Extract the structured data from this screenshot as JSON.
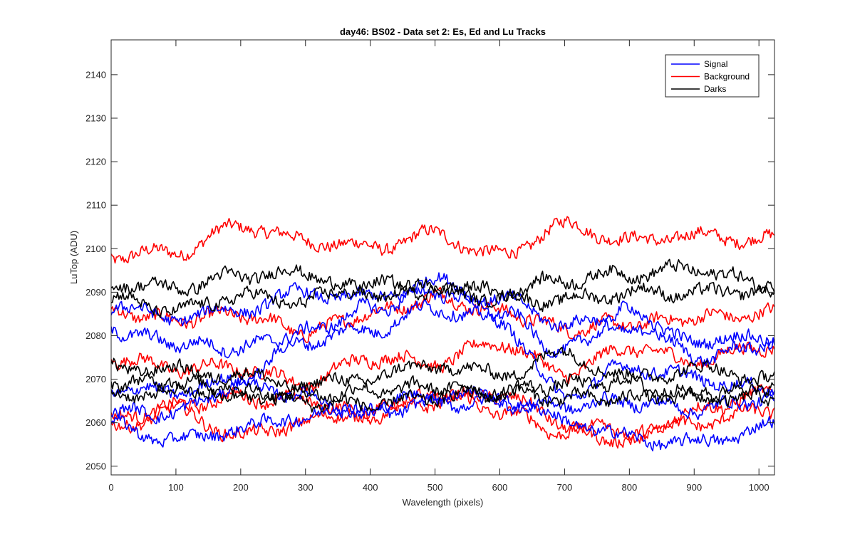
{
  "chart_data": {
    "type": "line",
    "title": "day46: BS02 - Data set 2: Es, Ed and Lu Tracks",
    "xlabel": "Wavelength (pixels)",
    "ylabel": "LuTop (ADU)",
    "xlim": [
      0,
      1024
    ],
    "ylim": [
      2048,
      2148
    ],
    "x_ticks": [
      0,
      100,
      200,
      300,
      400,
      500,
      600,
      700,
      800,
      900,
      1000
    ],
    "y_ticks": [
      2050,
      2060,
      2070,
      2080,
      2090,
      2100,
      2110,
      2120,
      2130,
      2140
    ],
    "grid": false,
    "legend_position": "top-right",
    "legend": [
      {
        "name": "Signal",
        "color": "#0000ff"
      },
      {
        "name": "Background",
        "color": "#ff0000"
      },
      {
        "name": "Darks",
        "color": "#000000"
      }
    ],
    "series": [
      {
        "group": "Signal",
        "color": "#0000ff",
        "x": [
          0,
          100,
          200,
          300,
          400,
          500,
          600,
          700,
          800,
          900,
          1024
        ],
        "y": [
          2087,
          2085,
          2086,
          2089,
          2088,
          2093,
          2089,
          2083,
          2081,
          2079,
          2080
        ]
      },
      {
        "group": "Signal",
        "color": "#0000ff",
        "x": [
          0,
          100,
          200,
          300,
          400,
          500,
          600,
          700,
          800,
          900,
          1024
        ],
        "y": [
          2082,
          2079,
          2077,
          2080,
          2086,
          2091,
          2086,
          2076,
          2085,
          2075,
          2079
        ]
      },
      {
        "group": "Signal",
        "color": "#0000ff",
        "x": [
          0,
          100,
          200,
          300,
          400,
          500,
          600,
          700,
          800,
          900,
          1024
        ],
        "y": [
          2068,
          2068,
          2070,
          2078,
          2081,
          2087,
          2084,
          2066,
          2072,
          2070,
          2068
        ]
      },
      {
        "group": "Signal",
        "color": "#0000ff",
        "x": [
          0,
          100,
          200,
          300,
          400,
          500,
          600,
          700,
          800,
          900,
          1024
        ],
        "y": [
          2060,
          2055,
          2058,
          2062,
          2064,
          2067,
          2065,
          2060,
          2057,
          2056,
          2059
        ]
      },
      {
        "group": "Signal",
        "color": "#0000ff",
        "x": [
          0,
          100,
          200,
          300,
          400,
          500,
          600,
          700,
          800,
          900,
          1024
        ],
        "y": [
          2063,
          2062,
          2068,
          2066,
          2063,
          2065,
          2064,
          2063,
          2065,
          2064,
          2066
        ]
      },
      {
        "group": "Background",
        "color": "#ff0000",
        "x": [
          0,
          100,
          200,
          300,
          400,
          500,
          600,
          700,
          800,
          900,
          1024
        ],
        "y": [
          2099,
          2100,
          2105,
          2101,
          2100,
          2104,
          2099,
          2105,
          2101,
          2103,
          2103
        ]
      },
      {
        "group": "Background",
        "color": "#ff0000",
        "x": [
          0,
          100,
          200,
          300,
          400,
          500,
          600,
          700,
          800,
          900,
          1024
        ],
        "y": [
          2086,
          2083,
          2084,
          2081,
          2086,
          2089,
          2085,
          2081,
          2083,
          2085,
          2085
        ]
      },
      {
        "group": "Background",
        "color": "#ff0000",
        "x": [
          0,
          100,
          200,
          300,
          400,
          500,
          600,
          700,
          800,
          900,
          1024
        ],
        "y": [
          2074,
          2072,
          2073,
          2070,
          2075,
          2073,
          2078,
          2072,
          2078,
          2074,
          2077
        ]
      },
      {
        "group": "Background",
        "color": "#ff0000",
        "x": [
          0,
          100,
          200,
          300,
          400,
          500,
          600,
          700,
          800,
          900,
          1024
        ],
        "y": [
          2060,
          2063,
          2066,
          2066,
          2062,
          2066,
          2062,
          2058,
          2057,
          2063,
          2066
        ]
      },
      {
        "group": "Background",
        "color": "#ff0000",
        "x": [
          0,
          100,
          200,
          300,
          400,
          500,
          600,
          700,
          800,
          900,
          1024
        ],
        "y": [
          2058,
          2062,
          2057,
          2061,
          2063,
          2064,
          2066,
          2060,
          2058,
          2060,
          2062
        ]
      },
      {
        "group": "Darks",
        "color": "#000000",
        "x": [
          0,
          100,
          200,
          300,
          400,
          500,
          600,
          700,
          800,
          900,
          1024
        ],
        "y": [
          2093,
          2091,
          2093,
          2094,
          2090,
          2092,
          2090,
          2092,
          2094,
          2096,
          2092
        ]
      },
      {
        "group": "Darks",
        "color": "#000000",
        "x": [
          0,
          100,
          200,
          300,
          400,
          500,
          600,
          700,
          800,
          900,
          1024
        ],
        "y": [
          2088,
          2086,
          2090,
          2088,
          2091,
          2090,
          2089,
          2089,
          2090,
          2089,
          2090
        ]
      },
      {
        "group": "Darks",
        "color": "#000000",
        "x": [
          0,
          100,
          200,
          300,
          400,
          500,
          600,
          700,
          800,
          900,
          1024
        ],
        "y": [
          2074,
          2072,
          2070,
          2068,
          2071,
          2074,
          2071,
          2075,
          2070,
          2073,
          2071
        ]
      },
      {
        "group": "Darks",
        "color": "#000000",
        "x": [
          0,
          100,
          200,
          300,
          400,
          500,
          600,
          700,
          800,
          900,
          1024
        ],
        "y": [
          2070,
          2069,
          2066,
          2066,
          2068,
          2069,
          2067,
          2068,
          2069,
          2067,
          2069
        ]
      },
      {
        "group": "Darks",
        "color": "#000000",
        "x": [
          0,
          100,
          200,
          300,
          400,
          500,
          600,
          700,
          800,
          900,
          1024
        ],
        "y": [
          2066,
          2067,
          2066,
          2065,
          2065,
          2066,
          2066,
          2065,
          2066,
          2067,
          2065
        ]
      }
    ]
  }
}
